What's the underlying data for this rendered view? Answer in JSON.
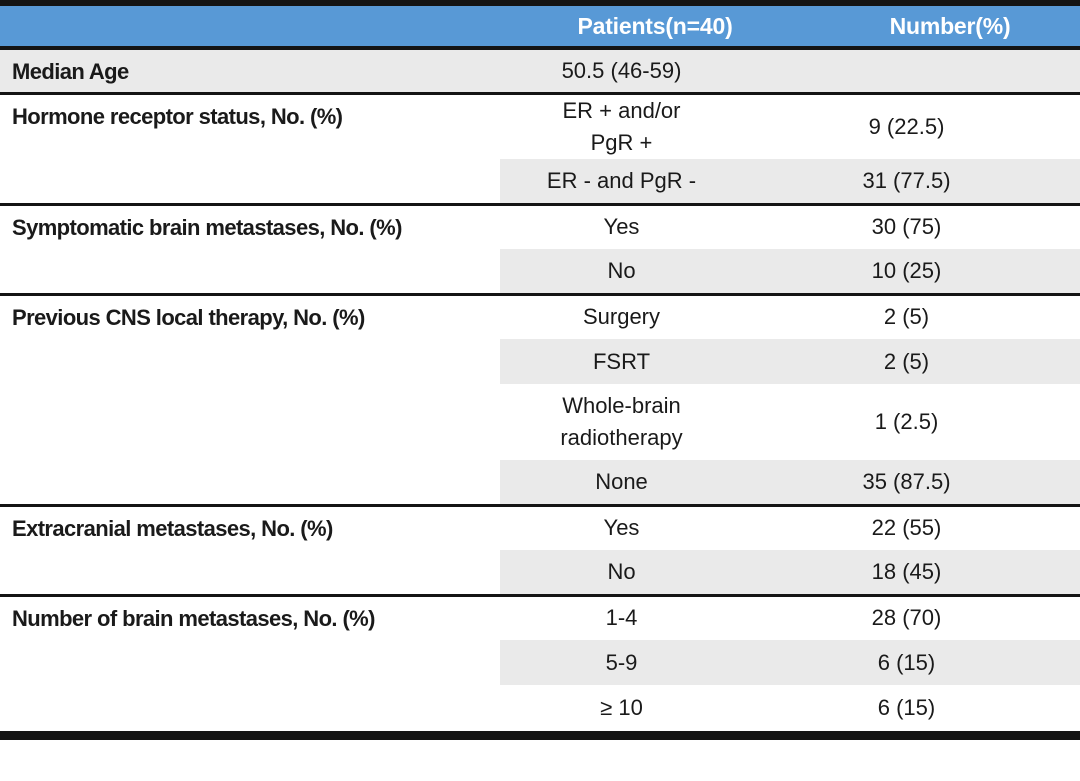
{
  "table": {
    "columns": [
      "",
      "Patients(n=40)",
      "Number(%)"
    ],
    "groups": [
      {
        "label": "Median Age",
        "rows": [
          {
            "value": "50.5 (46-59)",
            "number": ""
          }
        ]
      },
      {
        "label": "Hormone receptor status, No. (%)",
        "rows": [
          {
            "value": "ER + and/or\nPgR +",
            "number": "9 (22.5)"
          },
          {
            "value": "ER - and PgR -",
            "number": "31 (77.5)"
          }
        ]
      },
      {
        "label": "Symptomatic brain metastases, No. (%)",
        "rows": [
          {
            "value": "Yes",
            "number": "30 (75)"
          },
          {
            "value": "No",
            "number": "10 (25)"
          }
        ]
      },
      {
        "label": "Previous CNS local therapy, No. (%)",
        "rows": [
          {
            "value": "Surgery",
            "number": "2 (5)"
          },
          {
            "value": "FSRT",
            "number": "2 (5)"
          },
          {
            "value": "Whole-brain\nradiotherapy",
            "number": "1 (2.5)"
          },
          {
            "value": "None",
            "number": "35 (87.5)"
          }
        ]
      },
      {
        "label": "Extracranial metastases, No. (%)",
        "rows": [
          {
            "value": "Yes",
            "number": "22 (55)"
          },
          {
            "value": "No",
            "number": "18 (45)"
          }
        ]
      },
      {
        "label": "Number of brain metastases, No. (%)",
        "rows": [
          {
            "value": "1-4",
            "number": "28 (70)"
          },
          {
            "value": "5-9",
            "number": "6 (15)"
          },
          {
            "value": "≥ 10",
            "number": "6 (15)"
          }
        ]
      }
    ],
    "colors": {
      "header_bg": "#5899d6",
      "header_text": "#ffffff",
      "stripe_bg": "#eaeaea",
      "border": "#141414",
      "body_text": "#1a1a1a"
    }
  }
}
